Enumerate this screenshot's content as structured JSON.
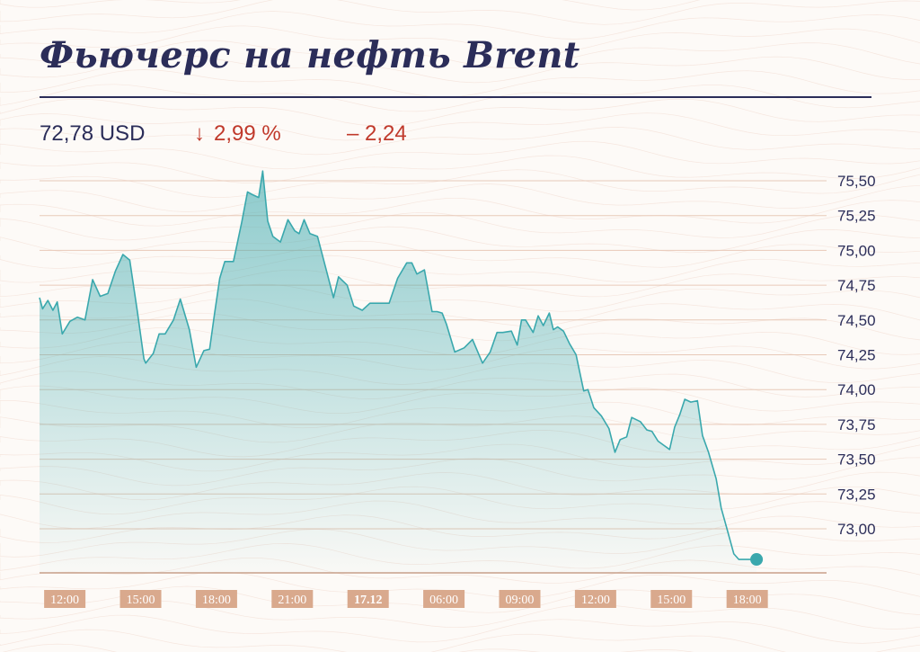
{
  "header": {
    "title": "Фьючерс на нефть Brent",
    "price": "72,78 USD",
    "change_arrow_icon": "arrow-down-icon",
    "change_pct": "2,99 %",
    "change_abs": "– 2,24"
  },
  "colors": {
    "title": "#2b2d59",
    "negative": "#c0392b",
    "line": "#3aa8ad",
    "grid": "#e8c9b8",
    "x_label_bg": "#d9a98d"
  },
  "chart_data": {
    "type": "area",
    "title": "Фьючерс на нефть Brent",
    "xlabel": "",
    "ylabel": "",
    "ylim": [
      72.65,
      75.57
    ],
    "y_ticks": [
      75.5,
      75.25,
      75.0,
      74.75,
      74.5,
      74.25,
      74.0,
      73.75,
      73.5,
      73.25,
      73.0
    ],
    "y_tick_labels": [
      "75,50",
      "75,25",
      "75,00",
      "74,75",
      "74,50",
      "74,25",
      "74,00",
      "73,75",
      "73,50",
      "73,25",
      "73,00"
    ],
    "y_axis_position": "right",
    "grid": true,
    "x_tick_labels": [
      {
        "label": "12:00",
        "bold": false
      },
      {
        "label": "15:00",
        "bold": false
      },
      {
        "label": "18:00",
        "bold": false
      },
      {
        "label": "21:00",
        "bold": false
      },
      {
        "label": "17.12",
        "bold": true
      },
      {
        "label": "06:00",
        "bold": false
      },
      {
        "label": "09:00",
        "bold": false
      },
      {
        "label": "12:00",
        "bold": false
      },
      {
        "label": "15:00",
        "bold": false
      },
      {
        "label": "18:00",
        "bold": false
      }
    ],
    "x_tick_positions": [
      1,
      4,
      7,
      10,
      13,
      16,
      19,
      22,
      25,
      28
    ],
    "xlim": [
      0,
      30.5
    ],
    "series": [
      {
        "name": "",
        "end_marker": true,
        "x": [
          0,
          0.12,
          0.33,
          0.53,
          0.7,
          0.9,
          1.2,
          1.5,
          1.8,
          2.1,
          2.4,
          2.7,
          3.0,
          3.3,
          3.57,
          3.87,
          4.13,
          4.2,
          4.5,
          4.73,
          4.97,
          5.3,
          5.57,
          5.93,
          6.2,
          6.5,
          6.73,
          6.93,
          7.13,
          7.33,
          7.67,
          8.0,
          8.23,
          8.43,
          8.67,
          8.83,
          9.03,
          9.23,
          9.53,
          9.83,
          10.1,
          10.27,
          10.47,
          10.7,
          11.0,
          11.3,
          11.63,
          11.83,
          12.17,
          12.43,
          12.77,
          13.07,
          13.47,
          13.83,
          14.17,
          14.53,
          14.73,
          14.93,
          15.23,
          15.53,
          15.63,
          15.73,
          15.93,
          16.1,
          16.43,
          16.8,
          17.13,
          17.53,
          17.83,
          18.1,
          18.33,
          18.67,
          18.9,
          19.07,
          19.23,
          19.53,
          19.73,
          19.93,
          20.17,
          20.33,
          20.5,
          20.73,
          20.97,
          21.23,
          21.53,
          21.7,
          21.93,
          22.23,
          22.53,
          22.77,
          22.97,
          23.23,
          23.43,
          23.77,
          24.03,
          24.23,
          24.47,
          24.7,
          24.93,
          25.13,
          25.33,
          25.53,
          25.77,
          26.03,
          26.23,
          26.47,
          26.77,
          26.97,
          27.23,
          27.47,
          27.67,
          27.93,
          28.1,
          28.37
        ],
        "y": [
          74.66,
          74.58,
          74.64,
          74.57,
          74.63,
          74.4,
          74.49,
          74.52,
          74.5,
          74.79,
          74.67,
          74.69,
          74.85,
          74.97,
          74.93,
          74.56,
          74.22,
          74.19,
          74.26,
          74.4,
          74.4,
          74.5,
          74.65,
          74.43,
          74.16,
          74.28,
          74.29,
          74.55,
          74.8,
          74.92,
          74.92,
          75.2,
          75.42,
          75.4,
          75.38,
          75.57,
          75.21,
          75.1,
          75.06,
          75.22,
          75.14,
          75.12,
          75.22,
          75.12,
          75.1,
          74.89,
          74.66,
          74.81,
          74.75,
          74.6,
          74.57,
          74.62,
          74.62,
          74.62,
          74.8,
          74.91,
          74.91,
          74.83,
          74.86,
          74.56,
          74.56,
          74.56,
          74.55,
          74.47,
          74.27,
          74.3,
          74.36,
          74.19,
          74.27,
          74.41,
          74.41,
          74.42,
          74.32,
          74.5,
          74.5,
          74.41,
          74.53,
          74.46,
          74.55,
          74.43,
          74.45,
          74.42,
          74.33,
          74.25,
          73.99,
          74.0,
          73.87,
          73.81,
          73.72,
          73.55,
          73.64,
          73.66,
          73.8,
          73.77,
          73.71,
          73.7,
          73.63,
          73.6,
          73.57,
          73.73,
          73.82,
          73.93,
          73.91,
          73.92,
          73.67,
          73.55,
          73.36,
          73.15,
          72.98,
          72.82,
          72.78,
          72.78,
          72.78,
          72.78
        ]
      }
    ]
  }
}
